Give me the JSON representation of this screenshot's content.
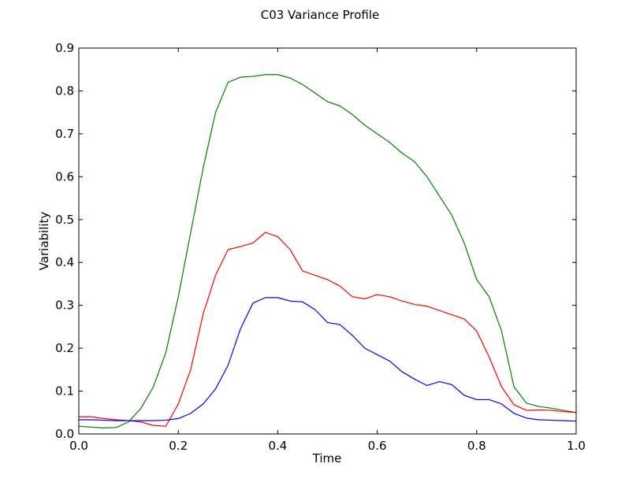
{
  "chart_data": {
    "type": "line",
    "title": "C03 Variance Profile",
    "xlabel": "Time",
    "ylabel": "Variability",
    "xlim": [
      0.0,
      1.0
    ],
    "ylim": [
      0.0,
      0.9
    ],
    "xticks": [
      "0.0",
      "0.2",
      "0.4",
      "0.6",
      "0.8",
      "1.0"
    ],
    "yticks": [
      "0.0",
      "0.1",
      "0.2",
      "0.3",
      "0.4",
      "0.5",
      "0.6",
      "0.7",
      "0.8",
      "0.9"
    ],
    "grid": false,
    "x": [
      0.0,
      0.025,
      0.05,
      0.075,
      0.1,
      0.125,
      0.15,
      0.175,
      0.2,
      0.225,
      0.25,
      0.275,
      0.3,
      0.325,
      0.35,
      0.375,
      0.4,
      0.425,
      0.45,
      0.475,
      0.5,
      0.525,
      0.55,
      0.575,
      0.6,
      0.625,
      0.65,
      0.675,
      0.7,
      0.725,
      0.75,
      0.775,
      0.8,
      0.825,
      0.85,
      0.875,
      0.9,
      0.925,
      0.95,
      0.975,
      1.0
    ],
    "series": [
      {
        "color": "#008000",
        "values": [
          0.018,
          0.016,
          0.014,
          0.015,
          0.028,
          0.06,
          0.11,
          0.19,
          0.32,
          0.47,
          0.62,
          0.75,
          0.82,
          0.832,
          0.834,
          0.838,
          0.838,
          0.83,
          0.815,
          0.795,
          0.775,
          0.765,
          0.745,
          0.72,
          0.7,
          0.68,
          0.655,
          0.635,
          0.6,
          0.555,
          0.51,
          0.445,
          0.36,
          0.32,
          0.24,
          0.11,
          0.072,
          0.064,
          0.06,
          0.055,
          0.05
        ]
      },
      {
        "color": "#ff0000",
        "values": [
          0.04,
          0.04,
          0.036,
          0.033,
          0.031,
          0.028,
          0.02,
          0.018,
          0.07,
          0.15,
          0.28,
          0.37,
          0.43,
          0.437,
          0.445,
          0.47,
          0.46,
          0.43,
          0.38,
          0.37,
          0.36,
          0.345,
          0.32,
          0.315,
          0.325,
          0.32,
          0.31,
          0.302,
          0.298,
          0.288,
          0.278,
          0.268,
          0.24,
          0.18,
          0.11,
          0.068,
          0.055,
          0.056,
          0.055,
          0.052,
          0.05
        ]
      },
      {
        "color": "#0000ff",
        "values": [
          0.033,
          0.033,
          0.032,
          0.031,
          0.031,
          0.031,
          0.031,
          0.032,
          0.036,
          0.048,
          0.07,
          0.105,
          0.16,
          0.245,
          0.305,
          0.318,
          0.318,
          0.31,
          0.308,
          0.29,
          0.26,
          0.255,
          0.23,
          0.2,
          0.185,
          0.17,
          0.145,
          0.128,
          0.113,
          0.122,
          0.115,
          0.09,
          0.08,
          0.08,
          0.07,
          0.048,
          0.037,
          0.033,
          0.032,
          0.031,
          0.03
        ]
      }
    ]
  }
}
